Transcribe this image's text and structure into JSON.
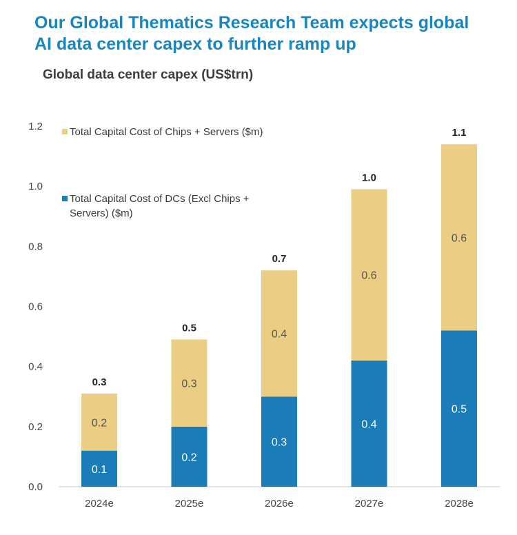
{
  "headline": {
    "line1": "Our Global Thematics Research Team expects global",
    "line2": "AI data center capex to further ramp up"
  },
  "chart_data": {
    "type": "bar",
    "stacked": true,
    "title": "Global data center capex (US$trn)",
    "xlabel": "",
    "ylabel": "",
    "categories": [
      "2024e",
      "2025e",
      "2026e",
      "2027e",
      "2028e"
    ],
    "series": [
      {
        "name": "Total Capital Cost of DCs (Excl Chips + Servers) ($m)",
        "color": "#1a7db7",
        "values": [
          0.12,
          0.2,
          0.3,
          0.42,
          0.52
        ],
        "labels": [
          "0.1",
          "0.2",
          "0.3",
          "0.4",
          "0.5"
        ]
      },
      {
        "name": "Total Capital Cost of Chips + Servers ($m)",
        "color": "#ebcd83",
        "values": [
          0.19,
          0.29,
          0.42,
          0.57,
          0.62
        ],
        "labels": [
          "0.2",
          "0.3",
          "0.4",
          "0.6",
          "0.6"
        ]
      }
    ],
    "totals": [
      "0.3",
      "0.5",
      "0.7",
      "1.0",
      "1.1"
    ],
    "ylim": [
      0,
      1.2
    ],
    "yticks": [
      "0.0",
      "0.2",
      "0.4",
      "0.6",
      "0.8",
      "1.0",
      "1.2"
    ],
    "grid": false,
    "legend_position": "top-left"
  }
}
